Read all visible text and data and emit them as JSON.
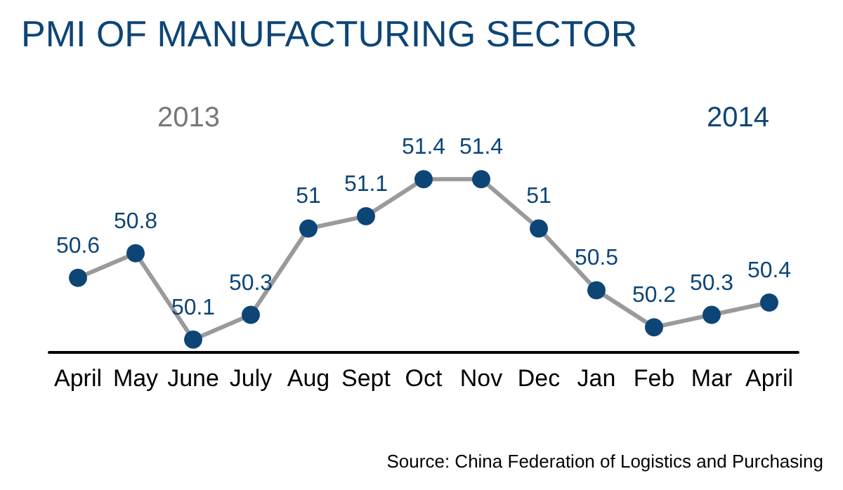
{
  "chart_data": {
    "type": "line",
    "title": "PMI OF MANUFACTURING SECTOR",
    "categories": [
      "April",
      "May",
      "June",
      "July",
      "Aug",
      "Sept",
      "Oct",
      "Nov",
      "Dec",
      "Jan",
      "Feb",
      "Mar",
      "April"
    ],
    "series": [
      {
        "color": "#0d4577",
        "values": [
          50.6,
          50.8,
          50.1,
          50.3,
          51,
          51.1,
          51.4,
          51.4,
          51,
          50.5,
          50.2,
          50.3,
          50.4
        ]
      }
    ],
    "data_labels": true,
    "marker": "circle",
    "line_style": "solid",
    "grid": false,
    "tick_labels": "x",
    "annotations": [
      "2013",
      "2014",
      "Source: China Federation of Logistics and Purchasing"
    ]
  }
}
